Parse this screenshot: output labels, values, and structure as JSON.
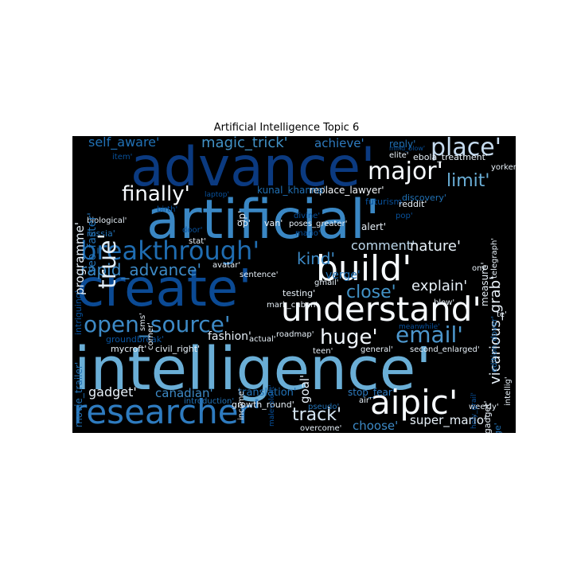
{
  "figure": {
    "title": "Artificial Intelligence Topic 6"
  },
  "words": {
    "intelligence": "intelligence'",
    "artificial": "artificial'",
    "create": "create'",
    "advance": "advance'",
    "build": "build'",
    "understand": "understand'",
    "researcher": "researcher'",
    "aipic": "aipic'",
    "breakthrough": "breakthrough'",
    "major": "major'",
    "place": "place'",
    "open_source": "open_source'",
    "huge": "huge'",
    "email": "email'",
    "finally": "finally'",
    "true": "true'",
    "limit": "limit'",
    "rapid_advance": "rapid_advance'",
    "kind": "kind'",
    "close": "close'",
    "track": "track'",
    "comment": "comment'",
    "nature": "nature'",
    "explain": "explain'",
    "vicarious_grab": "vicarious_grab'",
    "magic_trick": "magic_trick'",
    "self_aware": "self_aware'",
    "achieve": "achieve'",
    "programme": "programme'",
    "gadget": "gadget'",
    "canadian": "canadian'",
    "choose": "choose'",
    "super_mario": "super_mario'",
    "fashion": "fashion'",
    "verge": "verge'",
    "replace_lawyer": "replace_lawyer'",
    "kunal_khanna": "kunal_khanna'",
    "seo_faster": "seo_faster'",
    "translation": "translation'",
    "goal": "goal'",
    "stop_fear": "stop_fear'",
    "growth_round": "growth_round'",
    "mycroft": "mycroft'",
    "civil_right": "civil_right'",
    "groundbreak": "groundbreak'",
    "ebola_treatment": "ebola_treatment'",
    "reply": "reply'",
    "elite": "elite'",
    "yorker": "yorker'",
    "discovery": "discovery'",
    "reddit": "reddit'",
    "futurism": "futurism'",
    "telegraph": "telegraph'",
    "alert": "alert'",
    "measure": "measure'",
    "poses_greater": "poses_greater'",
    "mario": "mario'",
    "divine": "divine'",
    "van": "van'",
    "op": "op'",
    "ip": "ip'",
    "laptop": "laptop'",
    "birth": "birth'",
    "door": "door'",
    "stat": "stat'",
    "avatar": "avatar'",
    "sentence": "sentence'",
    "gmail": "gmail'",
    "mark_cuban": "mark_cuban'",
    "roadmap": "roadmap'",
    "testing": "testing'",
    "blow": "blow'",
    "teen": "teen'",
    "general": "general'",
    "second_enlarged": "second_enlarged'",
    "actual": "actual'",
    "income": "income'",
    "introduction": "introduction'",
    "pseudo": "pseudo'",
    "air": "air'",
    "overcome": "overcome'",
    "weekly": "weekly'",
    "engadget": "engadget'",
    "advantage": "advantage'",
    "intellig": "intellig'",
    "holy_grail": "holy_grail'",
    "edition_dover": "edition_dover'",
    "malevolent": "malevolent'",
    "om": "om'",
    "te": "te'",
    "biological": "biological'",
    "russia": "russia'",
    "intriguing": "intriguing'",
    "movie_trailer": "movie_trailer'",
    "sms": "sms'",
    "corner": "corner'",
    "item": "item'",
    "mind_blow": "mind_blow'",
    "pop": "pop'",
    "meanwhile": "meanwhile'"
  },
  "colors": {
    "background": "#000000",
    "pale": "#f7fbff",
    "light_blue": "#9ecae1",
    "mid_blue": "#4292c6",
    "blue": "#2171b5",
    "dark_blue": "#08519c",
    "navy": "#08306b"
  }
}
